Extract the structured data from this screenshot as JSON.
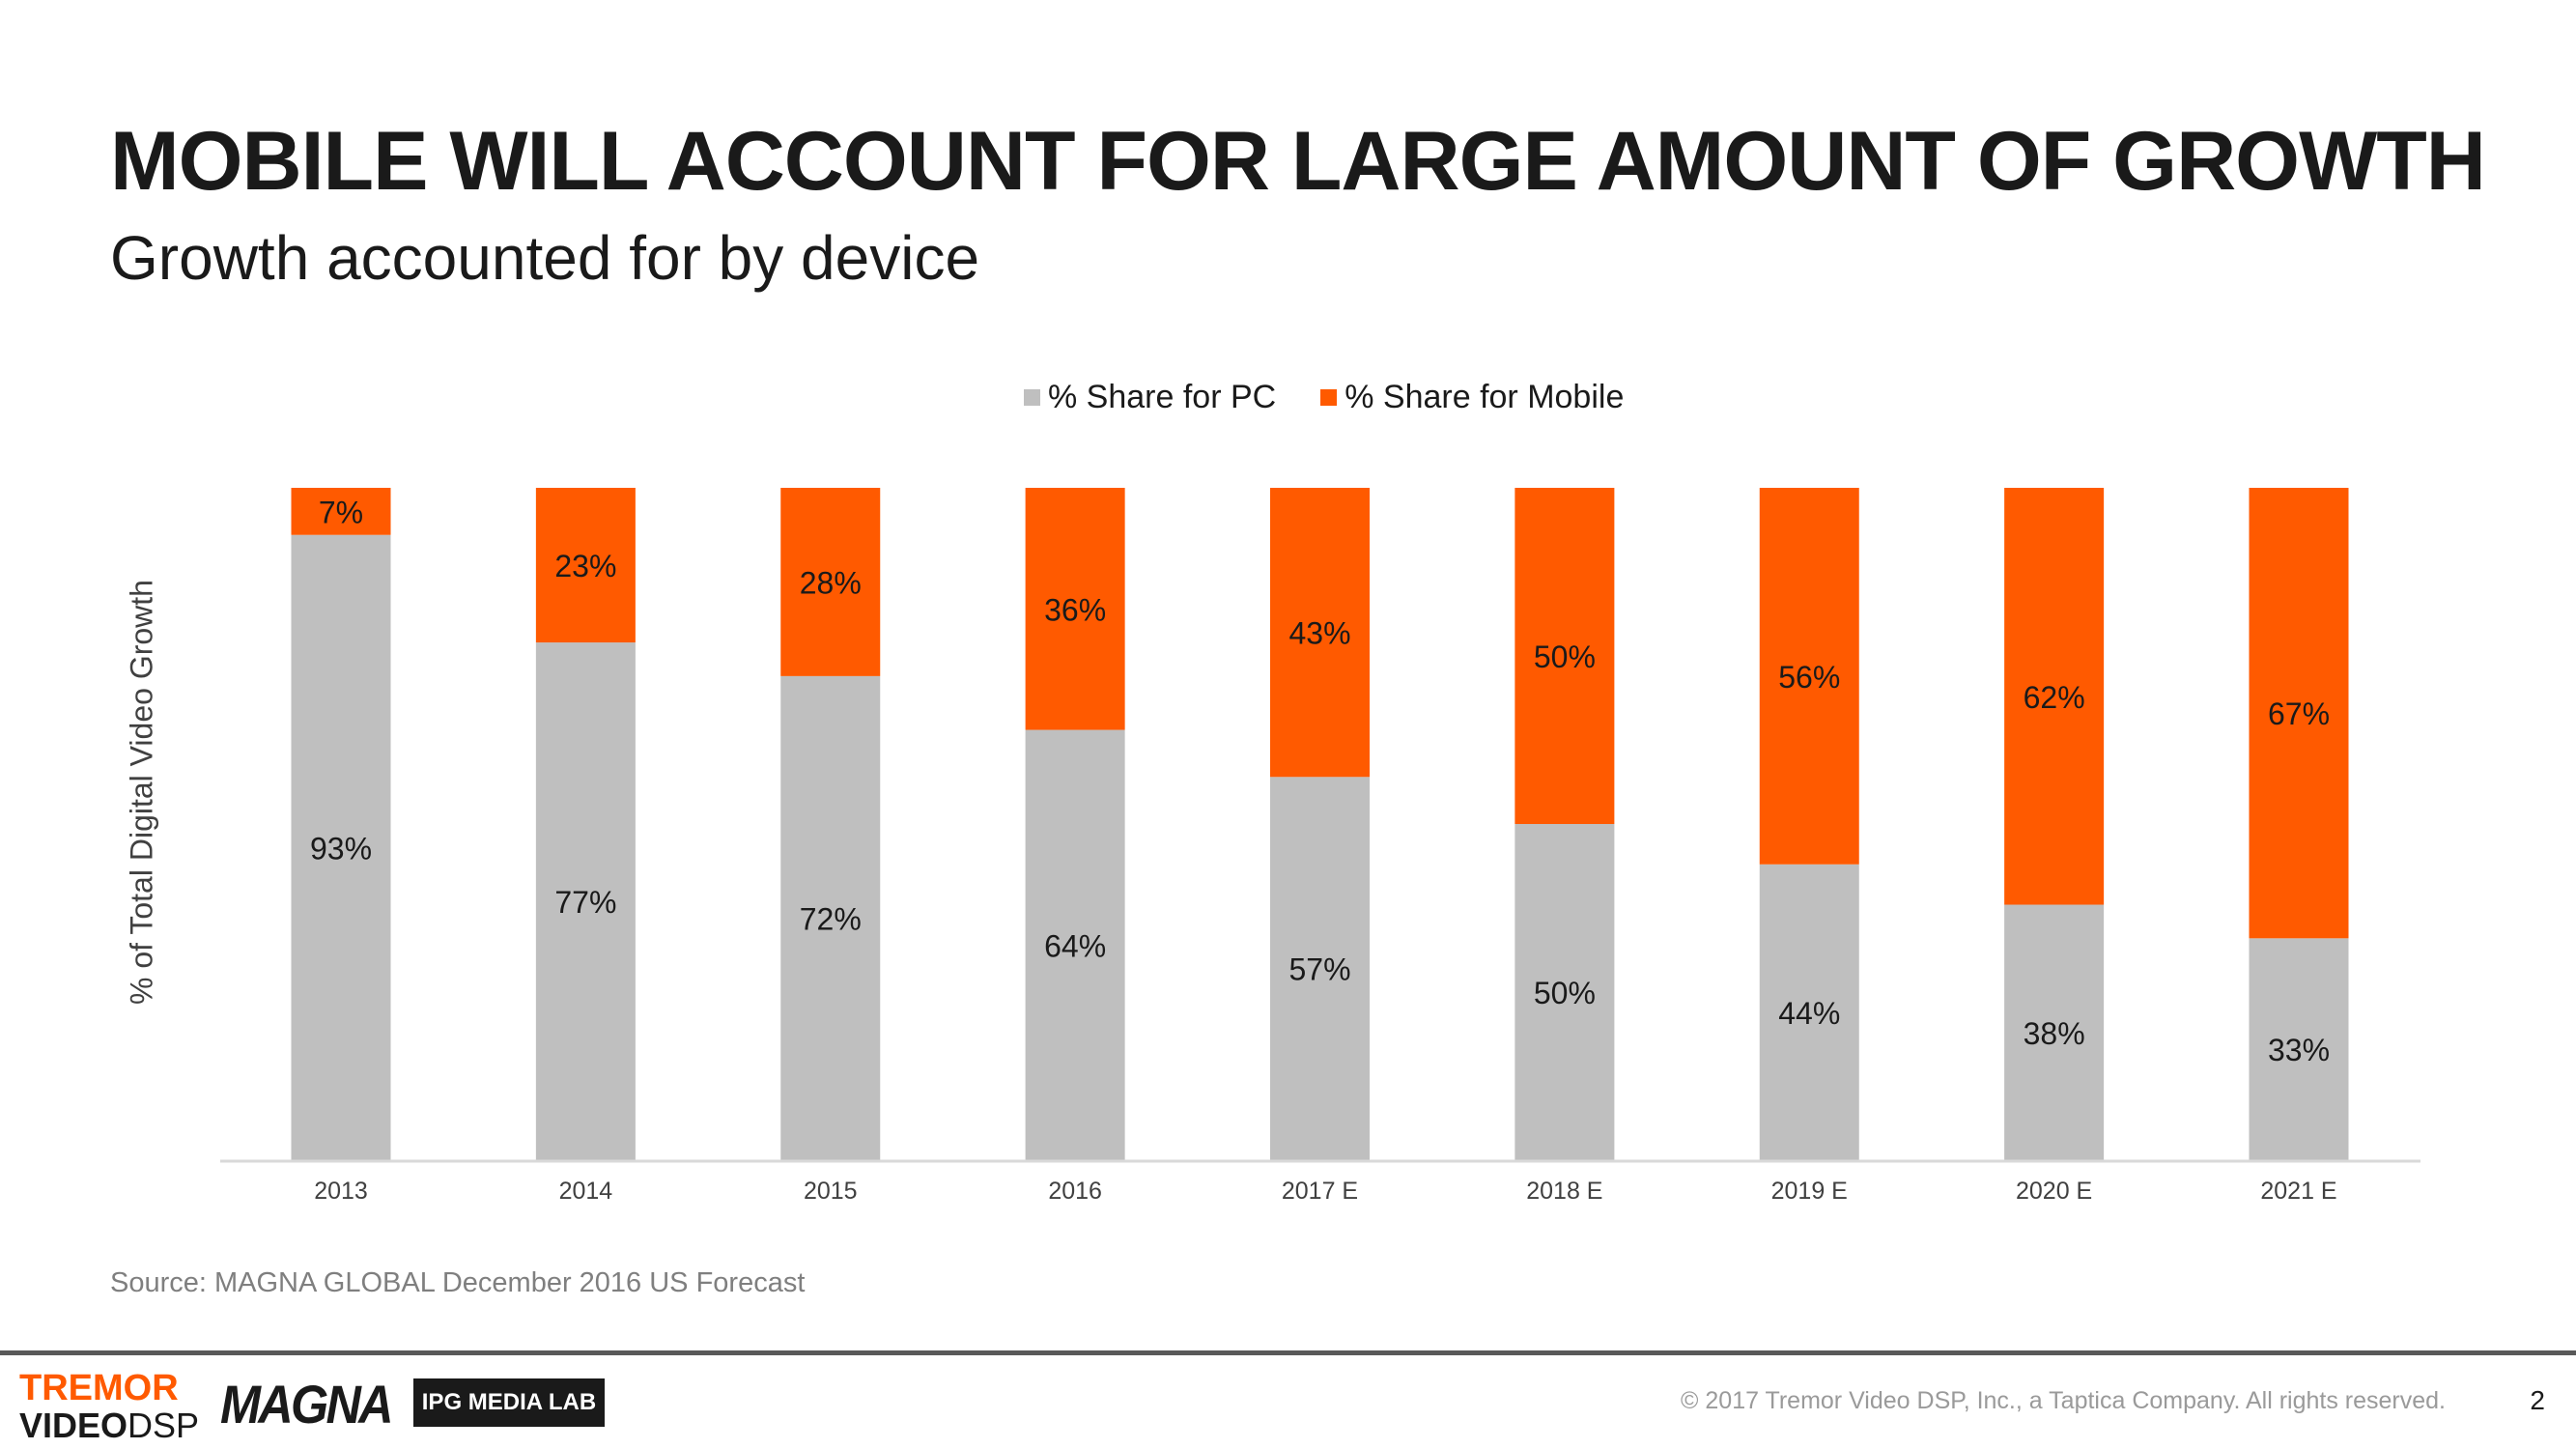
{
  "title": "MOBILE WILL ACCOUNT FOR LARGE AMOUNT OF GROWTH",
  "subtitle": "Growth accounted for by device",
  "legend": {
    "pc_label": "% Share for PC",
    "mobile_label": "% Share for Mobile"
  },
  "colors": {
    "pc": "#bfbfbf",
    "mobile": "#ff5a00",
    "axis": "#d9d9d9"
  },
  "chart_data": {
    "type": "bar",
    "stacked": true,
    "title": "",
    "xlabel": "",
    "ylabel": "% of Total Digital Video Growth",
    "ylim": [
      0,
      100
    ],
    "categories": [
      "2013",
      "2014",
      "2015",
      "2016",
      "2017 E",
      "2018 E",
      "2019 E",
      "2020 E",
      "2021 E"
    ],
    "series": [
      {
        "name": "% Share for PC",
        "values": [
          93,
          77,
          72,
          64,
          57,
          50,
          44,
          38,
          33
        ],
        "labels": [
          "93%",
          "77%",
          "72%",
          "64%",
          "57%",
          "50%",
          "44%",
          "38%",
          "33%"
        ]
      },
      {
        "name": "% Share for Mobile",
        "values": [
          7,
          23,
          28,
          36,
          43,
          50,
          56,
          62,
          67
        ],
        "labels": [
          "7%",
          "23%",
          "28%",
          "36%",
          "43%",
          "50%",
          "56%",
          "62%",
          "67%"
        ]
      }
    ],
    "legend_position": "top"
  },
  "source": "Source: MAGNA GLOBAL December 2016 US Forecast",
  "footer": {
    "logo_tremor_top": "TREMOR",
    "logo_tremor_bottom_bold": "VIDEO",
    "logo_tremor_bottom_thin": "DSP",
    "logo_magna": "MAGNA",
    "logo_ipg": "IPG MEDIA LAB",
    "copyright": "© 2017 Tremor Video DSP, Inc., a Taptica Company. All rights reserved.",
    "page_number": "2"
  }
}
